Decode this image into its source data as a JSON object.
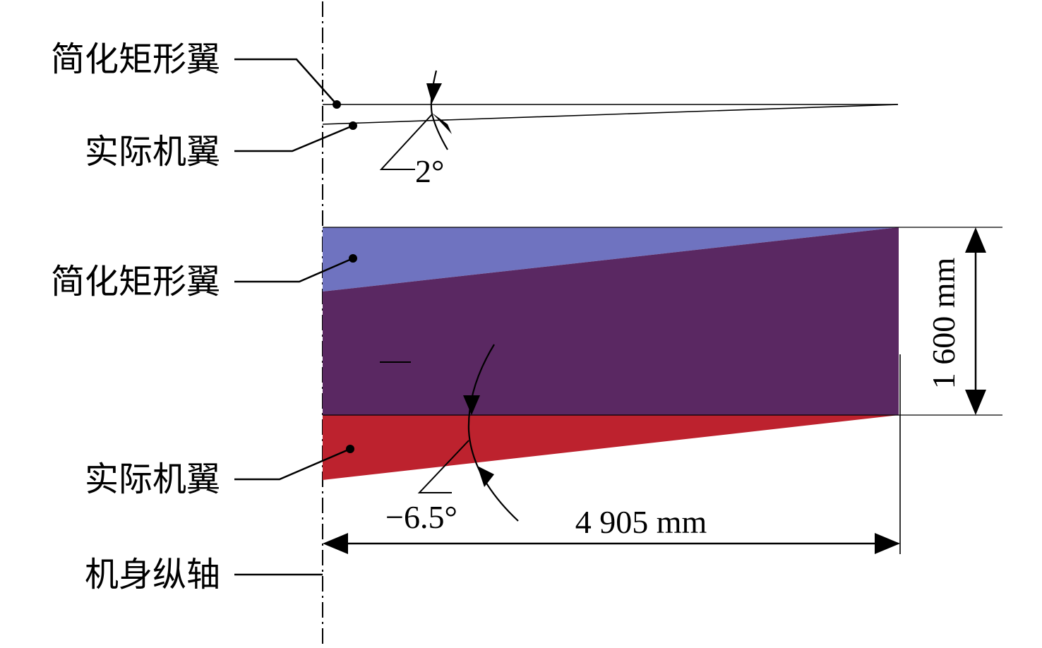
{
  "labels": {
    "top_simplified_wing": "简化矩形翼",
    "top_actual_wing": "实际机翼",
    "bottom_simplified_wing": "简化矩形翼",
    "bottom_actual_wing": "实际机翼",
    "fuselage_axis": "机身纵轴"
  },
  "annotations": {
    "top_angle": "2°",
    "bottom_angle": "−6.5°",
    "span_dimension": "4 905 mm",
    "chord_dimension": "1 600 mm"
  },
  "colors": {
    "simplified_wing": "#6f73c0",
    "overlap": "#5a2862",
    "actual_wing": "#bd222e",
    "line": "#000000"
  }
}
